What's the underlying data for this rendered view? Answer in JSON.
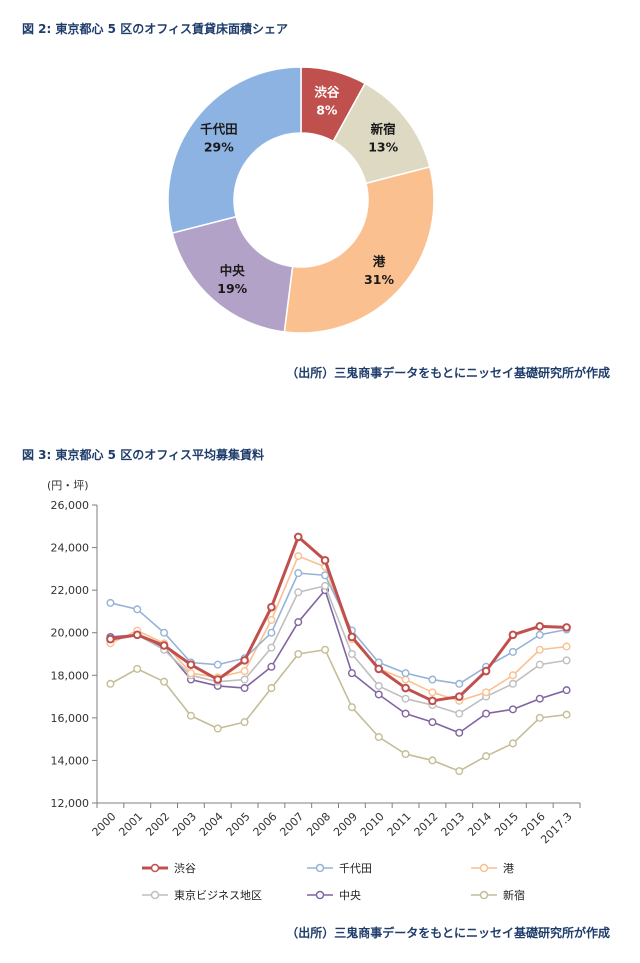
{
  "figure2": {
    "title": "図 2: 東京都心 5 区のオフィス賃貸床面積シェア",
    "source": "（出所）三鬼商事データをもとにニッセイ基礎研究所が作成"
  },
  "figure3": {
    "title": "図 3: 東京都心 5 区のオフィス平均募集賃料",
    "source": "（出所）三鬼商事データをもとにニッセイ基礎研究所が作成"
  },
  "chart_data": [
    {
      "type": "pie",
      "donut": true,
      "title": "",
      "slices": [
        {
          "name": "渋谷",
          "value": 8,
          "label": "8%",
          "color": "#c0504d",
          "label_color": "#ffffff"
        },
        {
          "name": "新宿",
          "value": 13,
          "label": "13%",
          "color": "#ddd9c3",
          "label_color": "#1a1a1a"
        },
        {
          "name": "港",
          "value": 31,
          "label": "31%",
          "color": "#fac090",
          "label_color": "#1a1a1a"
        },
        {
          "name": "中央",
          "value": 19,
          "label": "19%",
          "color": "#b3a2c7",
          "label_color": "#1a1a1a"
        },
        {
          "name": "千代田",
          "value": 29,
          "label": "29%",
          "color": "#8db3e2",
          "label_color": "#1a1a1a"
        }
      ]
    },
    {
      "type": "line",
      "title": "",
      "ylabel": "(円・坪)",
      "xlabel": "",
      "x": [
        "2000",
        "2001",
        "2002",
        "2003",
        "2004",
        "2005",
        "2006",
        "2007",
        "2008",
        "2009",
        "2010",
        "2011",
        "2012",
        "2013",
        "2014",
        "2015",
        "2016",
        "2017.3"
      ],
      "ylim": [
        12000,
        26000
      ],
      "yticks": [
        12000,
        14000,
        16000,
        18000,
        20000,
        22000,
        24000,
        26000
      ],
      "ytick_labels": [
        "12,000",
        "14,000",
        "16,000",
        "18,000",
        "20,000",
        "22,000",
        "24,000",
        "26,000"
      ],
      "grid": false,
      "legend": "bottom",
      "series": [
        {
          "name": "渋谷",
          "color": "#c0504d",
          "width": 3,
          "values": [
            19700,
            19900,
            19400,
            18500,
            17800,
            18700,
            21200,
            24500,
            23400,
            19800,
            18300,
            17400,
            16800,
            17000,
            18200,
            19900,
            20300,
            20250
          ]
        },
        {
          "name": "千代田",
          "color": "#95b3d7",
          "width": 1.6,
          "values": [
            21400,
            21100,
            20000,
            18600,
            18500,
            18800,
            20000,
            22800,
            22700,
            20100,
            18600,
            18100,
            17800,
            17600,
            18400,
            19100,
            19900,
            20150
          ]
        },
        {
          "name": "港",
          "color": "#fac090",
          "width": 1.6,
          "values": [
            19500,
            20100,
            19500,
            18100,
            17900,
            18200,
            20600,
            23600,
            23100,
            19700,
            18300,
            17800,
            17200,
            16800,
            17200,
            18000,
            19200,
            19350
          ]
        },
        {
          "name": "東京ビジネス地区",
          "color": "#bfbfbf",
          "width": 1.6,
          "values": [
            19700,
            19900,
            19200,
            18000,
            17700,
            17800,
            19300,
            21900,
            22200,
            19000,
            17500,
            16900,
            16600,
            16200,
            17000,
            17600,
            18500,
            18700
          ]
        },
        {
          "name": "中央",
          "color": "#8064a2",
          "width": 1.6,
          "values": [
            19800,
            19900,
            19300,
            17800,
            17500,
            17400,
            18400,
            20500,
            22000,
            18100,
            17100,
            16200,
            15800,
            15300,
            16200,
            16400,
            16900,
            17300
          ]
        },
        {
          "name": "新宿",
          "color": "#c4bd97",
          "width": 1.6,
          "values": [
            17600,
            18300,
            17700,
            16100,
            15500,
            15800,
            17400,
            19000,
            19200,
            16500,
            15100,
            14300,
            14000,
            13500,
            14200,
            14800,
            16000,
            16150
          ]
        }
      ]
    }
  ]
}
